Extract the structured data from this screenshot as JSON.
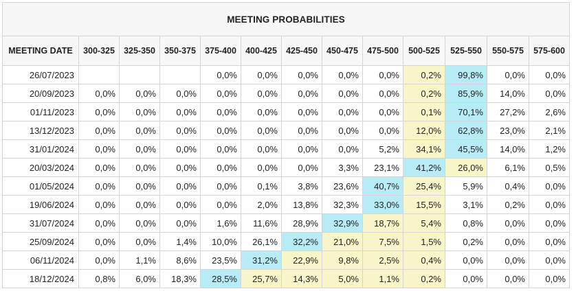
{
  "title": "MEETING PROBABILITIES",
  "date_header": "MEETING DATE",
  "ranges": [
    "300-325",
    "325-350",
    "350-375",
    "375-400",
    "400-425",
    "425-450",
    "450-475",
    "475-500",
    "500-525",
    "525-550",
    "550-575",
    "575-600"
  ],
  "colors": {
    "highlight_max": "#b7ecf7",
    "highlight_secondary": "#f8f5c8",
    "border": "#d4d4d4",
    "header_bg": "#f7f7f7"
  },
  "rows": [
    {
      "date": "26/07/2023",
      "values": [
        "",
        "",
        "",
        "0,0%",
        "0,0%",
        "0,0%",
        "0,0%",
        "0,0%",
        "0,2%",
        "99,8%",
        "0,0%",
        "0,0%"
      ],
      "highlights": [
        "",
        "",
        "",
        "",
        "",
        "",
        "",
        "",
        "yellow",
        "cyan",
        "",
        ""
      ]
    },
    {
      "date": "20/09/2023",
      "values": [
        "0,0%",
        "0,0%",
        "0,0%",
        "0,0%",
        "0,0%",
        "0,0%",
        "0,0%",
        "0,0%",
        "0,2%",
        "85,9%",
        "14,0%",
        "0,0%"
      ],
      "highlights": [
        "",
        "",
        "",
        "",
        "",
        "",
        "",
        "",
        "yellow",
        "cyan",
        "",
        ""
      ]
    },
    {
      "date": "01/11/2023",
      "values": [
        "0,0%",
        "0,0%",
        "0,0%",
        "0,0%",
        "0,0%",
        "0,0%",
        "0,0%",
        "0,0%",
        "0,1%",
        "70,1%",
        "27,2%",
        "2,6%"
      ],
      "highlights": [
        "",
        "",
        "",
        "",
        "",
        "",
        "",
        "",
        "yellow",
        "cyan",
        "",
        ""
      ]
    },
    {
      "date": "13/12/2023",
      "values": [
        "0,0%",
        "0,0%",
        "0,0%",
        "0,0%",
        "0,0%",
        "0,0%",
        "0,0%",
        "0,0%",
        "12,0%",
        "62,8%",
        "23,0%",
        "2,1%"
      ],
      "highlights": [
        "",
        "",
        "",
        "",
        "",
        "",
        "",
        "",
        "yellow",
        "cyan",
        "",
        ""
      ]
    },
    {
      "date": "31/01/2024",
      "values": [
        "0,0%",
        "0,0%",
        "0,0%",
        "0,0%",
        "0,0%",
        "0,0%",
        "0,0%",
        "5,2%",
        "34,1%",
        "45,5%",
        "14,0%",
        "1,2%"
      ],
      "highlights": [
        "",
        "",
        "",
        "",
        "",
        "",
        "",
        "",
        "yellow",
        "cyan",
        "",
        ""
      ]
    },
    {
      "date": "20/03/2024",
      "values": [
        "0,0%",
        "0,0%",
        "0,0%",
        "0,0%",
        "0,0%",
        "0,0%",
        "3,3%",
        "23,1%",
        "41,2%",
        "26,0%",
        "6,1%",
        "0,5%"
      ],
      "highlights": [
        "",
        "",
        "",
        "",
        "",
        "",
        "",
        "",
        "cyan",
        "yellow",
        "",
        ""
      ]
    },
    {
      "date": "01/05/2024",
      "values": [
        "0,0%",
        "0,0%",
        "0,0%",
        "0,0%",
        "0,1%",
        "3,8%",
        "23,6%",
        "40,7%",
        "25,4%",
        "5,9%",
        "0,4%",
        "0,0%"
      ],
      "highlights": [
        "",
        "",
        "",
        "",
        "",
        "",
        "",
        "cyan",
        "yellow",
        "",
        "",
        ""
      ]
    },
    {
      "date": "19/06/2024",
      "values": [
        "0,0%",
        "0,0%",
        "0,0%",
        "0,0%",
        "2,0%",
        "13,8%",
        "32,3%",
        "33,0%",
        "15,5%",
        "3,1%",
        "0,2%",
        "0,0%"
      ],
      "highlights": [
        "",
        "",
        "",
        "",
        "",
        "",
        "",
        "cyan",
        "yellow",
        "",
        "",
        ""
      ]
    },
    {
      "date": "31/07/2024",
      "values": [
        "0,0%",
        "0,0%",
        "0,0%",
        "1,6%",
        "11,6%",
        "28,9%",
        "32,9%",
        "18,7%",
        "5,4%",
        "0,8%",
        "0,0%",
        "0,0%"
      ],
      "highlights": [
        "",
        "",
        "",
        "",
        "",
        "",
        "cyan",
        "yellow",
        "yellow",
        "",
        "",
        ""
      ]
    },
    {
      "date": "25/09/2024",
      "values": [
        "0,0%",
        "0,0%",
        "1,4%",
        "10,0%",
        "26,1%",
        "32,2%",
        "21,0%",
        "7,5%",
        "1,5%",
        "0,2%",
        "0,0%",
        "0,0%"
      ],
      "highlights": [
        "",
        "",
        "",
        "",
        "",
        "cyan",
        "yellow",
        "yellow",
        "yellow",
        "",
        "",
        ""
      ]
    },
    {
      "date": "06/11/2024",
      "values": [
        "0,0%",
        "1,1%",
        "8,6%",
        "23,5%",
        "31,2%",
        "22,9%",
        "9,8%",
        "2,5%",
        "0,4%",
        "0,0%",
        "0,0%",
        "0,0%"
      ],
      "highlights": [
        "",
        "",
        "",
        "",
        "cyan",
        "yellow",
        "yellow",
        "yellow",
        "yellow",
        "",
        "",
        ""
      ]
    },
    {
      "date": "18/12/2024",
      "values": [
        "0,8%",
        "6,0%",
        "18,3%",
        "28,5%",
        "25,7%",
        "14,3%",
        "5,0%",
        "1,1%",
        "0,2%",
        "0,0%",
        "0,0%",
        "0,0%"
      ],
      "highlights": [
        "",
        "",
        "",
        "cyan",
        "yellow",
        "yellow",
        "yellow",
        "yellow",
        "yellow",
        "",
        "",
        ""
      ]
    }
  ]
}
